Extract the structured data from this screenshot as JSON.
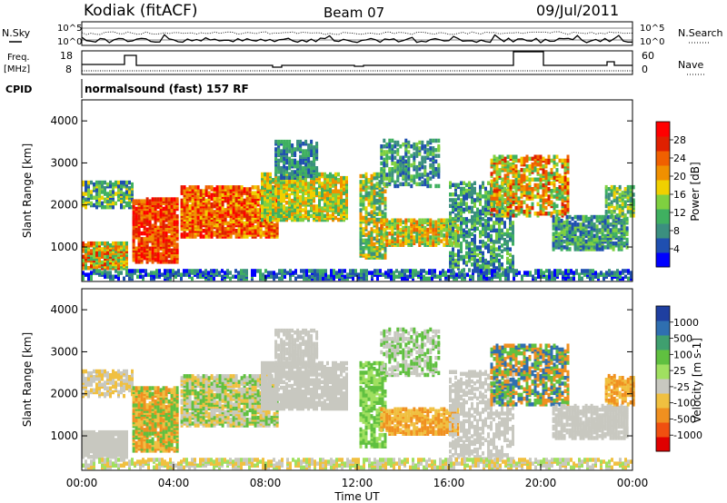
{
  "header": {
    "station": "Kodiak (fitACF)",
    "beam": "Beam 07",
    "date": "09/Jul/2011"
  },
  "left_labels": {
    "nsky": "N.Sky",
    "freq_line1": "Freq.",
    "freq_line2": "[MHz]",
    "cpid": "CPID"
  },
  "right_labels": {
    "nsearch": "N.Search",
    "nave": "Nave"
  },
  "panel_ticks": {
    "noise_left": [
      "10^5",
      "10^0"
    ],
    "noise_right": [
      "10^5",
      "10^0"
    ],
    "freq_left": [
      "18",
      "8"
    ],
    "freq_right": [
      "60",
      "0"
    ]
  },
  "cpid_text": "normalsound (fast) 157 RF",
  "colors": {
    "power_scale": [
      "#0000ff",
      "#1f4fb0",
      "#3b8f7f",
      "#3fb060",
      "#7fd040",
      "#f0d000",
      "#f09000",
      "#f06000",
      "#e02000",
      "#ff0000"
    ],
    "velocity_scale": [
      "#1f3fa0",
      "#2f6fb0",
      "#3f9f6f",
      "#60c040",
      "#a0e060",
      "#c8c8c0",
      "#f0c040",
      "#f09020",
      "#f05010",
      "#e00000"
    ]
  },
  "chart_data": [
    {
      "type": "heatmap",
      "name": "power",
      "xlabel": "",
      "ylabel": "Slant Range [km]",
      "ylim": [
        180,
        4500
      ],
      "yticks": [
        "1000",
        "2000",
        "3000",
        "4000"
      ],
      "colorbar_label": "Power [dB]",
      "colorbar_ticks": [
        "4",
        "8",
        "12",
        "16",
        "20",
        "24",
        "28"
      ],
      "colorbar_range": [
        0,
        32
      ]
    },
    {
      "type": "heatmap",
      "name": "velocity",
      "xlabel": "Time UT",
      "ylabel": "Slant Range [km]",
      "ylim": [
        180,
        4500
      ],
      "yticks": [
        "1000",
        "2000",
        "3000",
        "4000"
      ],
      "xticks": [
        "00:00",
        "04:00",
        "08:00",
        "12:00",
        "16:00",
        "20:00",
        "00:00"
      ],
      "xlim_hours": [
        0,
        24
      ],
      "colorbar_label": "Velocity [m s-1]",
      "colorbar_ticks": [
        "1000",
        "500",
        "100",
        "25",
        "-25",
        "-100",
        "-500",
        "-1000"
      ]
    }
  ]
}
